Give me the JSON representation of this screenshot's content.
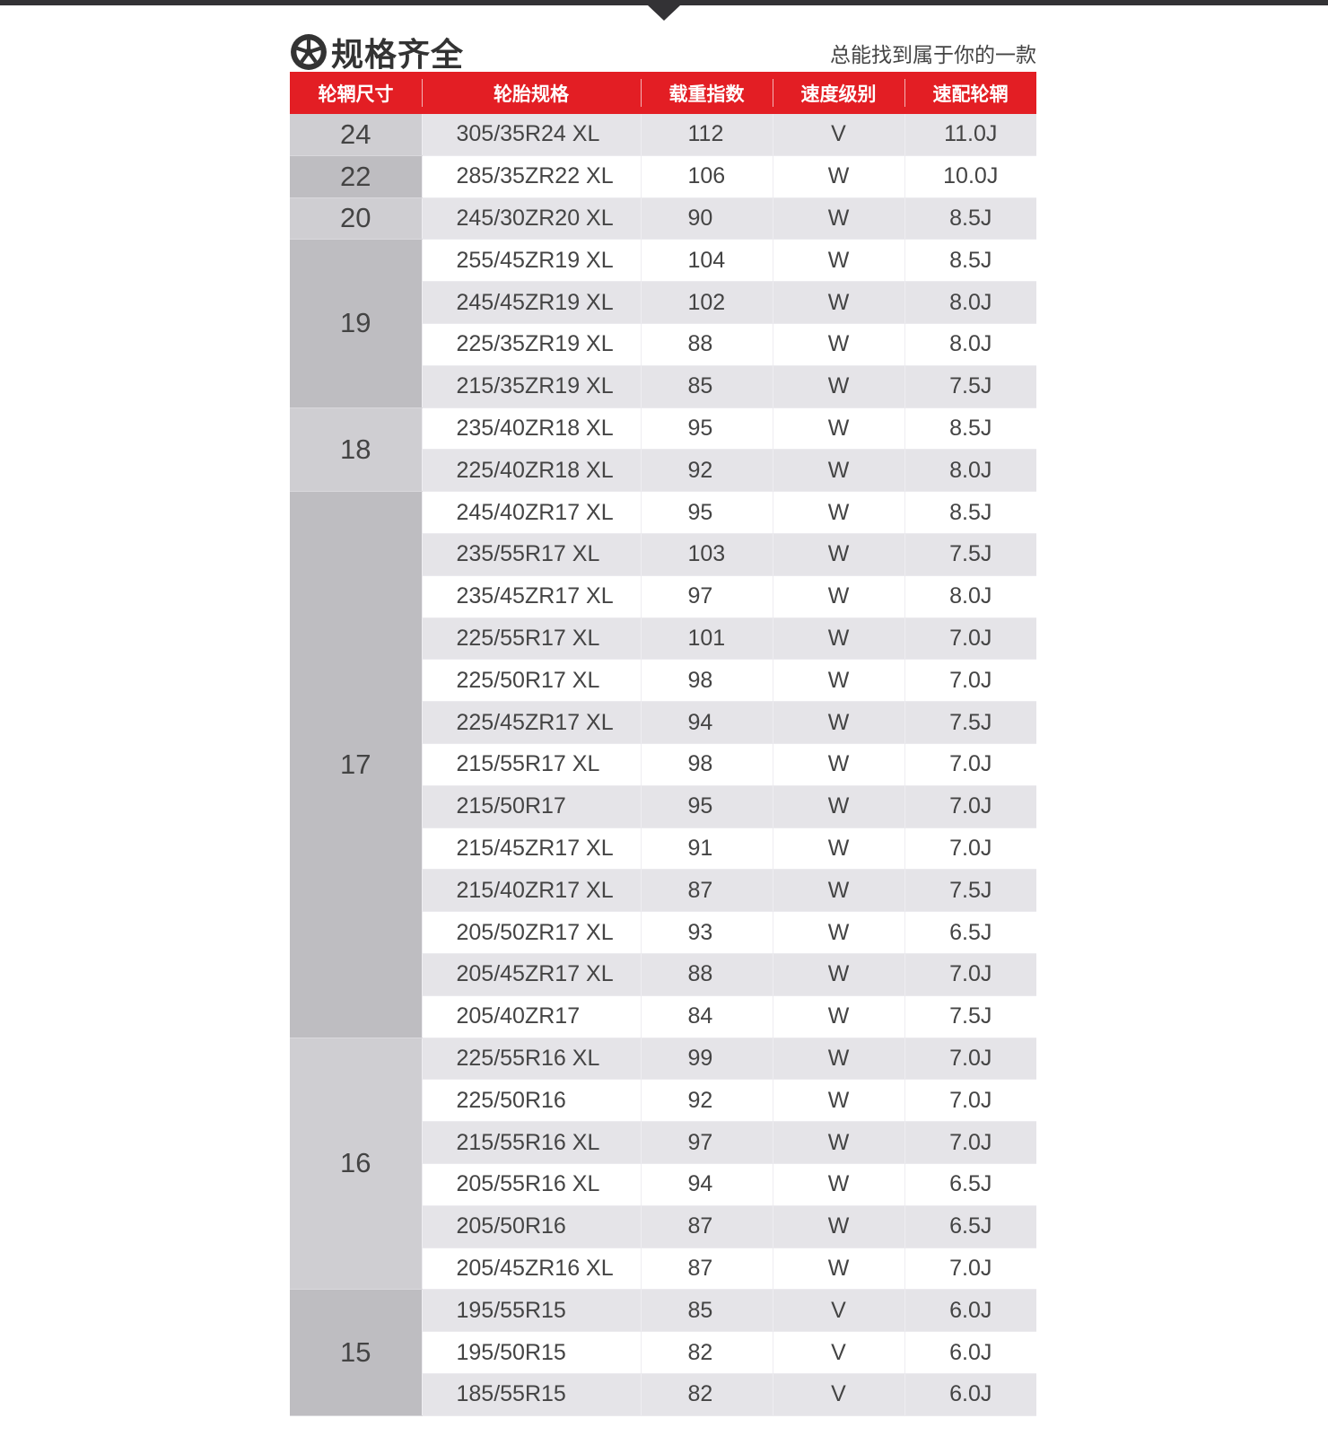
{
  "header": {
    "title": "规格齐全",
    "subtitle": "总能找到属于你的一款",
    "title_icon": "tire-wheel-icon"
  },
  "colors": {
    "header_bg": "#e31e24",
    "top_bar": "#333235"
  },
  "columns": [
    "轮辋尺寸",
    "轮胎规格",
    "载重指数",
    "速度级别",
    "速配轮辋"
  ],
  "groups": [
    {
      "rim": "24",
      "rows": [
        [
          "305/35R24 XL",
          "112",
          "V",
          "11.0J"
        ]
      ]
    },
    {
      "rim": "22",
      "rows": [
        [
          "285/35ZR22 XL",
          "106",
          "W",
          "10.0J"
        ]
      ]
    },
    {
      "rim": "20",
      "rows": [
        [
          "245/30ZR20 XL",
          "90",
          "W",
          "8.5J"
        ]
      ]
    },
    {
      "rim": "19",
      "rows": [
        [
          "255/45ZR19 XL",
          "104",
          "W",
          "8.5J"
        ],
        [
          "245/45ZR19 XL",
          "102",
          "W",
          "8.0J"
        ],
        [
          "225/35ZR19 XL",
          "88",
          "W",
          "8.0J"
        ],
        [
          "215/35ZR19 XL",
          "85",
          "W",
          "7.5J"
        ]
      ]
    },
    {
      "rim": "18",
      "rows": [
        [
          "235/40ZR18 XL",
          "95",
          "W",
          "8.5J"
        ],
        [
          "225/40ZR18 XL",
          "92",
          "W",
          "8.0J"
        ]
      ]
    },
    {
      "rim": "17",
      "rows": [
        [
          "245/40ZR17 XL",
          "95",
          "W",
          "8.5J"
        ],
        [
          "235/55R17 XL",
          "103",
          "W",
          "7.5J"
        ],
        [
          "235/45ZR17 XL",
          "97",
          "W",
          "8.0J"
        ],
        [
          "225/55R17 XL",
          "101",
          "W",
          "7.0J"
        ],
        [
          "225/50R17 XL",
          "98",
          "W",
          "7.0J"
        ],
        [
          "225/45ZR17 XL",
          "94",
          "W",
          "7.5J"
        ],
        [
          "215/55R17 XL",
          "98",
          "W",
          "7.0J"
        ],
        [
          "215/50R17",
          "95",
          "W",
          "7.0J"
        ],
        [
          "215/45ZR17 XL",
          "91",
          "W",
          "7.0J"
        ],
        [
          "215/40ZR17 XL",
          "87",
          "W",
          "7.5J"
        ],
        [
          "205/50ZR17 XL",
          "93",
          "W",
          "6.5J"
        ],
        [
          "205/45ZR17 XL",
          "88",
          "W",
          "7.0J"
        ],
        [
          "205/40ZR17",
          "84",
          "W",
          "7.5J"
        ]
      ]
    },
    {
      "rim": "16",
      "rows": [
        [
          "225/55R16 XL",
          "99",
          "W",
          "7.0J"
        ],
        [
          "225/50R16",
          "92",
          "W",
          "7.0J"
        ],
        [
          "215/55R16 XL",
          "97",
          "W",
          "7.0J"
        ],
        [
          "205/55R16 XL",
          "94",
          "W",
          "6.5J"
        ],
        [
          "205/50R16",
          "87",
          "W",
          "6.5J"
        ],
        [
          "205/45ZR16 XL",
          "87",
          "W",
          "7.0J"
        ]
      ]
    },
    {
      "rim": "15",
      "rows": [
        [
          "195/55R15",
          "85",
          "V",
          "6.0J"
        ],
        [
          "195/50R15",
          "82",
          "V",
          "6.0J"
        ],
        [
          "185/55R15",
          "82",
          "V",
          "6.0J"
        ]
      ]
    }
  ]
}
